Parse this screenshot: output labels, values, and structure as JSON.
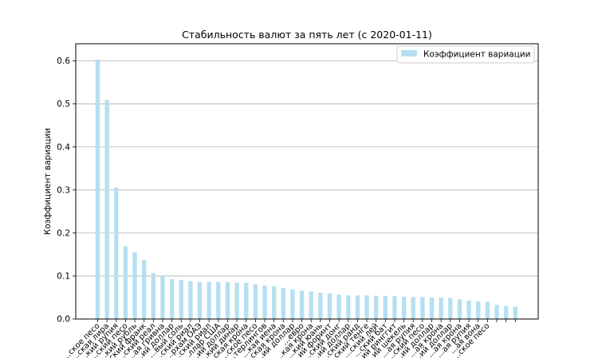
{
  "chart_data": {
    "type": "bar",
    "title": "Стабильность валют за пять лет (с 2020-01-11)",
    "xlabel": "",
    "ylabel": "Коэффициент вариации",
    "ylim": [
      0,
      0.64
    ],
    "yticks": [
      0.0,
      0.1,
      0.2,
      0.3,
      0.4,
      0.5,
      0.6
    ],
    "ytick_labels": [
      "0.0",
      "0.1",
      "0.2",
      "0.3",
      "0.4",
      "0.5",
      "0.6"
    ],
    "grid": "y",
    "legend_position": "top-right",
    "bar_color": "#b7dff0",
    "series": [
      {
        "name": "Коэффициент вариации",
        "values": [
          0.603,
          0.509,
          0.306,
          0.169,
          0.155,
          0.137,
          0.107,
          0.102,
          0.093,
          0.091,
          0.088,
          0.086,
          0.086,
          0.086,
          0.086,
          0.085,
          0.084,
          0.081,
          0.078,
          0.076,
          0.072,
          0.069,
          0.066,
          0.064,
          0.061,
          0.06,
          0.057,
          0.055,
          0.055,
          0.055,
          0.054,
          0.054,
          0.053,
          0.052,
          0.051,
          0.051,
          0.05,
          0.05,
          0.049,
          0.046,
          0.043,
          0.041,
          0.04,
          0.033,
          0.03,
          0.029
        ]
      }
    ],
    "categories": [
      "...ское песо",
      "...ская лира",
      "...кий рупия",
      "...ский песо",
      "...кий рубль",
      "...ский франк",
      "...ский реал",
      "...ая гривна",
      "...ий доллар",
      "...вый соль",
      "...ский риал",
      "...рхам ОАЭ",
      "...ский риал",
      "...ллар США",
      "...ий доллар",
      "...кий динар",
      "...ская крона",
      "...ское песо",
      "...терлингов",
      "...кая иена",
      "...ская крона",
      "...ий доллар",
      "...евро",
      "...кая крона",
      "...кий юань",
      "...ий форинт",
      "...ский донг",
      "...ий доллар",
      "...ский ранд",
      "...ский тенге",
      "...ский лей",
      "...ский бат",
      "...ий ринггит",
      "...ий шекель",
      "...ая рупия",
      "...ский песо",
      "...ий доллар",
      "...ая крона",
      "...ий доллар",
      "...ая крона",
      "...ая рупия",
      "...ая вона",
      "...ское песо",
      "",
      "",
      ""
    ]
  }
}
